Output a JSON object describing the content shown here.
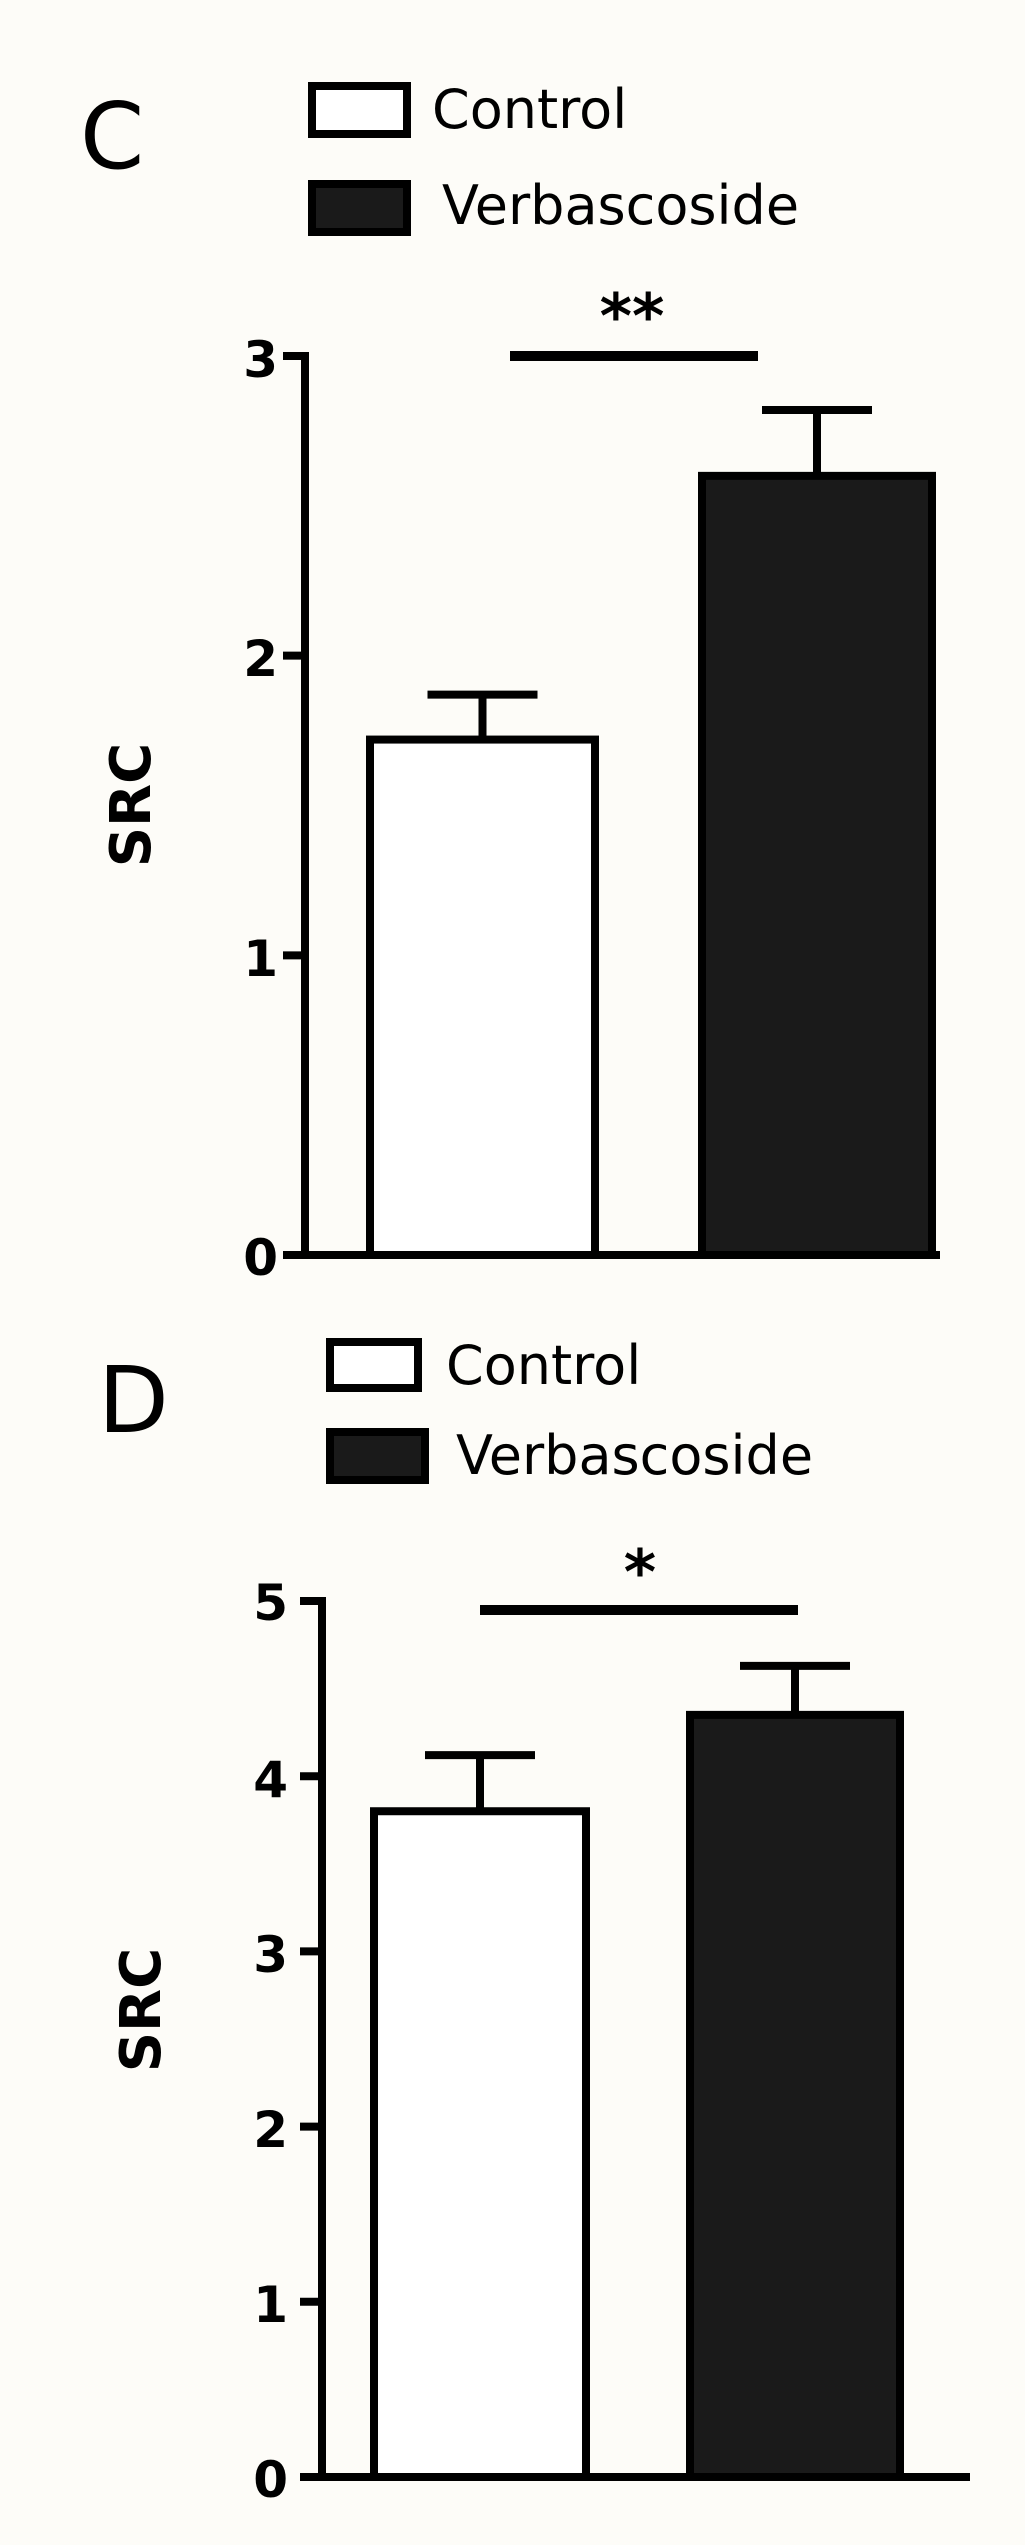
{
  "panels": [
    {
      "letter": "C",
      "legend": [
        {
          "label": "Control",
          "fill": "#ffffff"
        },
        {
          "label": "Verbascoside",
          "fill": "#1a1a1a"
        }
      ],
      "significance": "**",
      "chart_data": {
        "type": "bar",
        "categories": [
          "Control",
          "Verbascoside"
        ],
        "series": [
          {
            "values": [
              1.72,
              2.6
            ],
            "errors": [
              0.15,
              0.22
            ],
            "fills": [
              "#ffffff",
              "#1a1a1a"
            ]
          }
        ],
        "title": "",
        "xlabel": "",
        "ylabel": "SRC",
        "ylim": [
          0,
          3
        ],
        "yticks": [
          0,
          1,
          2,
          3
        ],
        "yticklabels": [
          "0",
          "1",
          "2",
          "3"
        ],
        "grid": false,
        "legend_position": "top"
      }
    },
    {
      "letter": "D",
      "legend": [
        {
          "label": "Control",
          "fill": "#ffffff"
        },
        {
          "label": "Verbascoside",
          "fill": "#1a1a1a"
        }
      ],
      "significance": "*",
      "chart_data": {
        "type": "bar",
        "categories": [
          "Control",
          "Verbascoside"
        ],
        "series": [
          {
            "values": [
              3.8,
              4.35
            ],
            "errors": [
              0.32,
              0.28
            ],
            "fills": [
              "#ffffff",
              "#1a1a1a"
            ]
          }
        ],
        "title": "",
        "xlabel": "",
        "ylabel": "SRC",
        "ylim": [
          0,
          5
        ],
        "yticks": [
          0,
          1,
          2,
          3,
          4,
          5
        ],
        "yticklabels": [
          "0",
          "1",
          "2",
          "3",
          "4",
          "5"
        ],
        "grid": false,
        "legend_position": "top"
      }
    }
  ]
}
